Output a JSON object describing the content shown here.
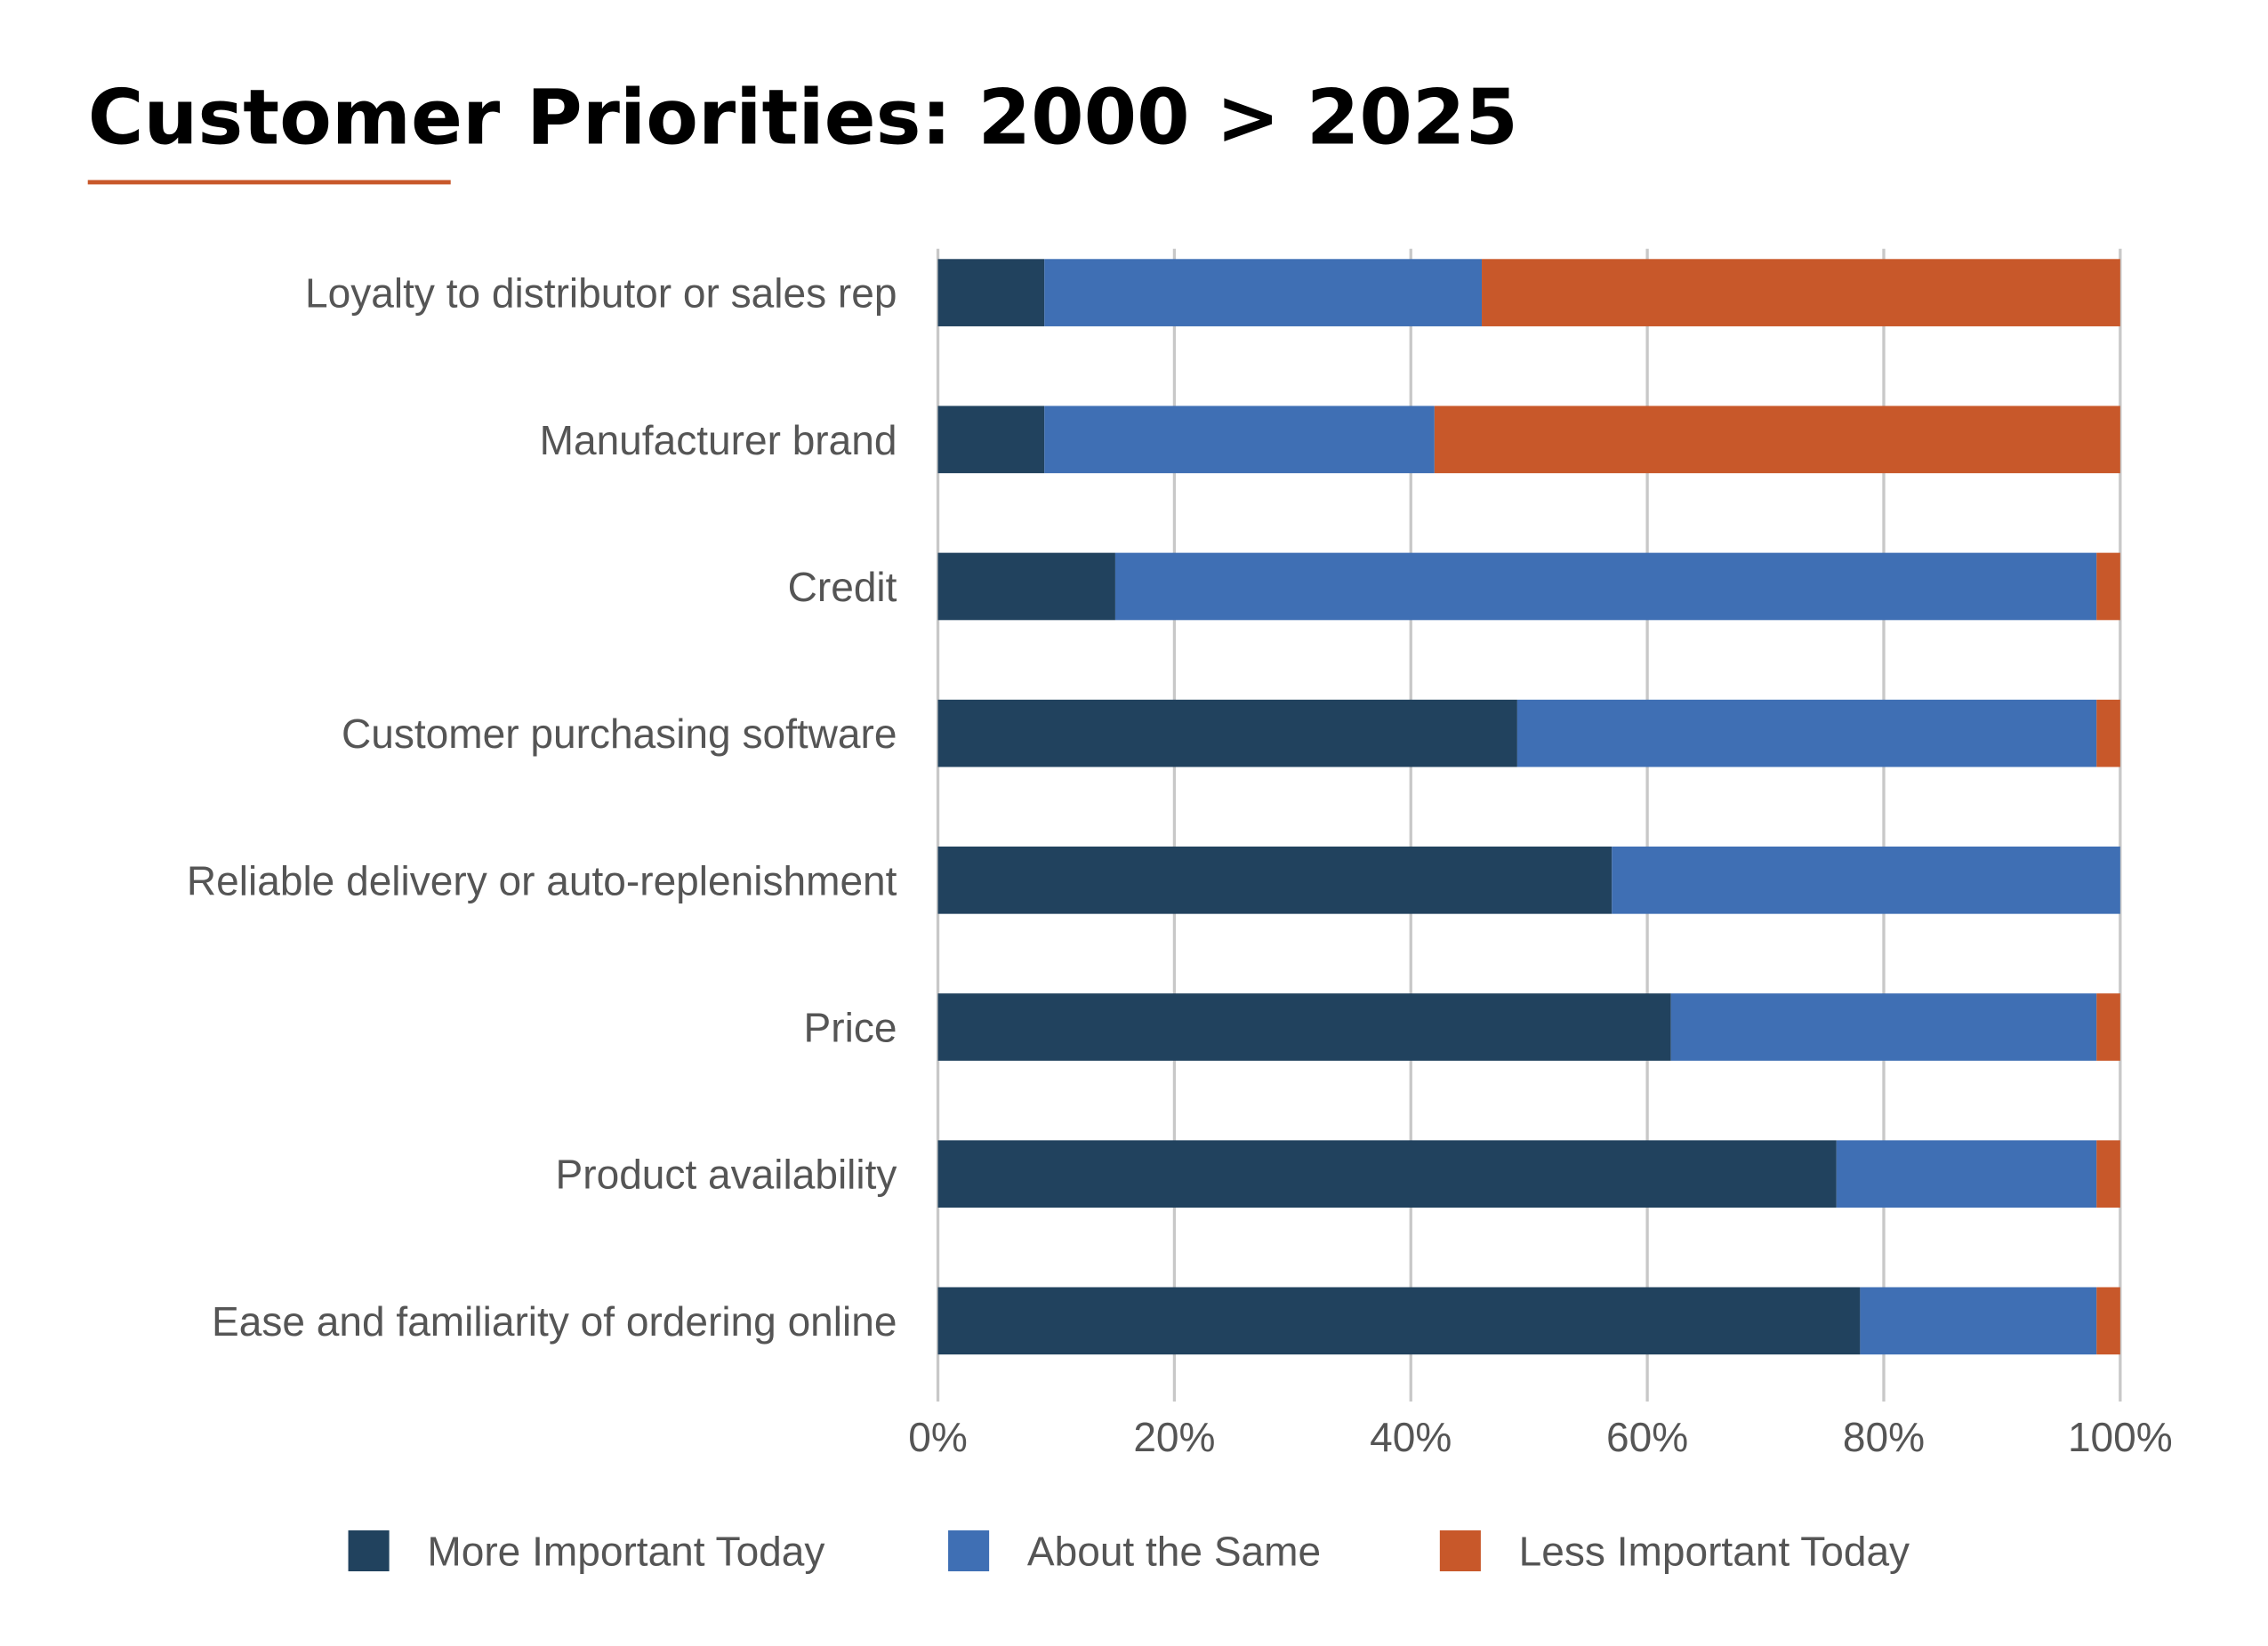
{
  "chart_data": {
    "type": "bar",
    "orientation": "horizontal",
    "stacked": true,
    "title": "Customer Priorities: 2000 > 2025",
    "categories": [
      "Loyalty to distributor or sales rep",
      "Manufacturer brand",
      "Credit",
      "Customer purchasing software",
      "Reliable delivery or auto-replenishment",
      "Price",
      "Product availability",
      "Ease and familiarity of ordering online"
    ],
    "series": [
      {
        "name": "More Important Today",
        "color": "#21425e",
        "values": [
          9,
          9,
          15,
          49,
          57,
          62,
          76,
          78
        ]
      },
      {
        "name": "About the Same",
        "color": "#3f6fb4",
        "values": [
          37,
          33,
          83,
          49,
          43,
          36,
          22,
          20
        ]
      },
      {
        "name": "Less Important Today",
        "color": "#c8582a",
        "values": [
          54,
          58,
          2,
          2,
          0,
          2,
          2,
          2
        ]
      }
    ],
    "xlim": [
      0,
      100
    ],
    "xticks": [
      "0%",
      "20%",
      "40%",
      "60%",
      "80%",
      "100%"
    ],
    "grid": true,
    "legend": "bottom",
    "accent_color": "#c8582a"
  }
}
